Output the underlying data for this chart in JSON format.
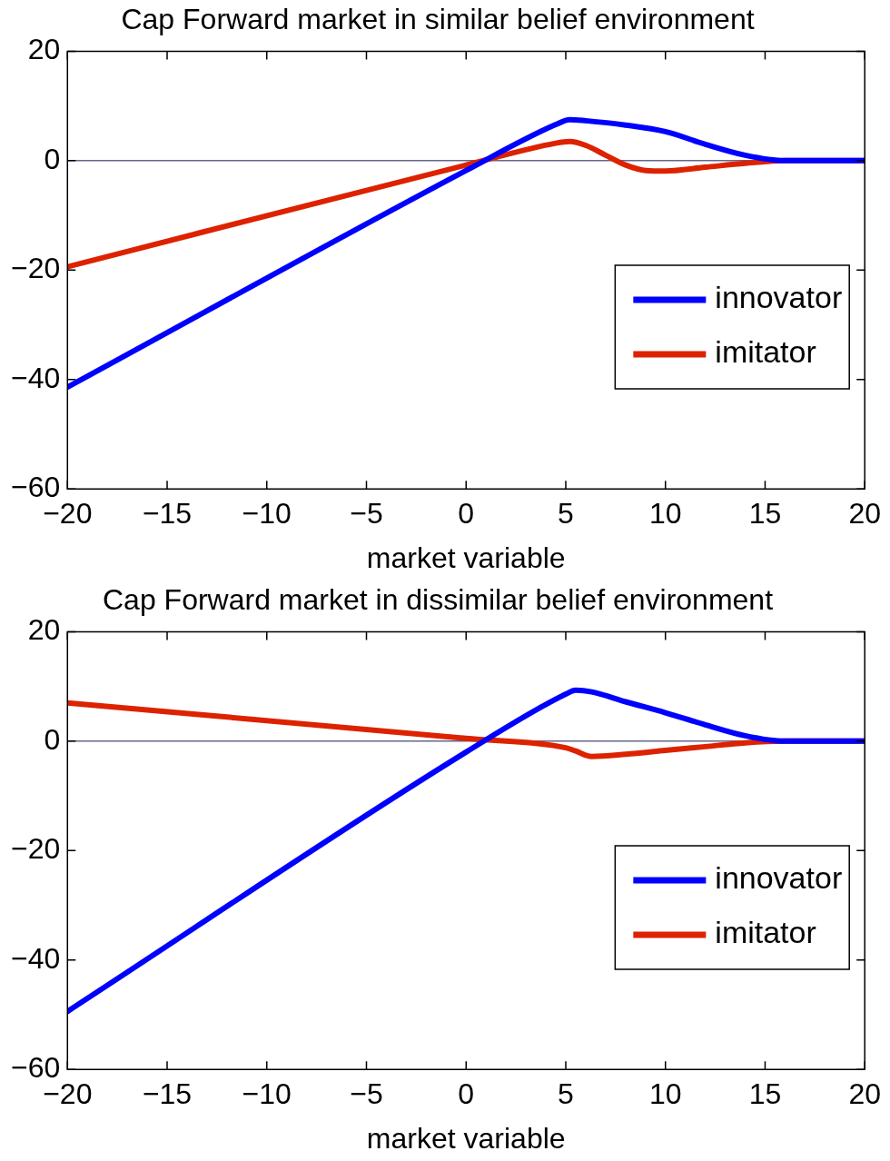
{
  "chart_data": [
    {
      "type": "line",
      "title": "Cap Forward market in similar belief environment",
      "xlabel": "market variable",
      "xlim": [
        -20,
        20
      ],
      "xticks": [
        -20,
        -15,
        -10,
        -5,
        0,
        5,
        10,
        15,
        20
      ],
      "ylim": [
        -60,
        20
      ],
      "yticks": [
        -60,
        -40,
        -20,
        0,
        20
      ],
      "grid": false,
      "legend": "right",
      "ref_lines": [
        {
          "axis": "y",
          "value": 0,
          "color": "#66668a"
        }
      ],
      "series": [
        {
          "name": "innovator",
          "color": "#0000ff",
          "x": [
            -20,
            0,
            4.5,
            5.2,
            6,
            8,
            10,
            12,
            14,
            16,
            18,
            20
          ],
          "values": [
            -41.4,
            -1.8,
            6.6,
            7.5,
            7.3,
            6.5,
            5.3,
            3,
            1,
            0,
            0,
            0
          ]
        },
        {
          "name": "imitator",
          "color": "#dd2200",
          "x": [
            -20,
            0,
            4.5,
            5.2,
            6,
            7,
            8,
            9,
            10,
            12,
            14,
            16,
            20
          ],
          "values": [
            -19.4,
            -0.8,
            3.2,
            3.5,
            2.8,
            1,
            -0.8,
            -1.8,
            -1.9,
            -1.2,
            -0.5,
            0,
            0
          ]
        }
      ]
    },
    {
      "type": "line",
      "title": "Cap Forward market in dissimilar belief environment",
      "xlabel": "market variable",
      "xlim": [
        -20,
        20
      ],
      "xticks": [
        -20,
        -15,
        -10,
        -5,
        0,
        5,
        10,
        15,
        20
      ],
      "ylim": [
        -60,
        20
      ],
      "yticks": [
        -60,
        -40,
        -20,
        0,
        20
      ],
      "grid": false,
      "legend": "right",
      "ref_lines": [
        {
          "axis": "y",
          "value": 0,
          "color": "#66668a"
        }
      ],
      "series": [
        {
          "name": "innovator",
          "color": "#0000ff",
          "x": [
            -20,
            0,
            5,
            5.5,
            6.3,
            8,
            10,
            12,
            14,
            16,
            20
          ],
          "values": [
            -49.4,
            -2,
            8.6,
            9.3,
            9,
            7.2,
            5.2,
            3,
            1,
            0,
            0
          ]
        },
        {
          "name": "imitator",
          "color": "#dd2200",
          "x": [
            -20,
            0,
            5,
            5.5,
            6.3,
            8,
            10,
            12,
            14,
            16,
            20
          ],
          "values": [
            7,
            0.5,
            -1.2,
            -1.8,
            -2.8,
            -2.4,
            -1.7,
            -1,
            -0.3,
            0,
            0
          ]
        }
      ]
    }
  ]
}
